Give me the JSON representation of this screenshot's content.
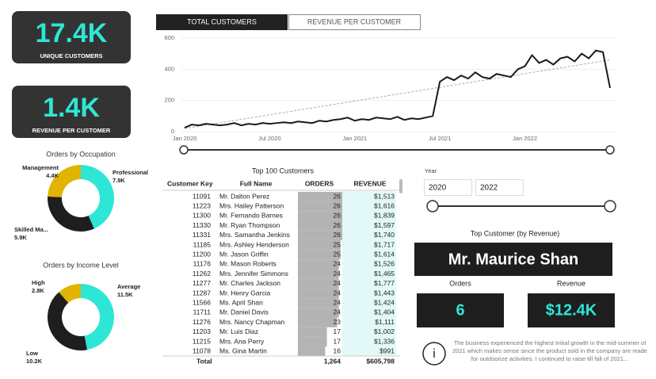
{
  "kpis": [
    {
      "value": "17.4K",
      "label": "UNIQUE CUSTOMERS"
    },
    {
      "value": "1.4K",
      "label": "REVENUE PER CUSTOMER"
    }
  ],
  "tabs": [
    "TOTAL CUSTOMERS",
    "REVENUE PER CUSTOMER"
  ],
  "chart_data": [
    {
      "type": "line",
      "color": "#1a1a1a",
      "categories": [
        "Jan 2020",
        null,
        null,
        null,
        null,
        null,
        null,
        null,
        null,
        null,
        null,
        null,
        "Jul 2020",
        null,
        null,
        null,
        null,
        null,
        null,
        null,
        null,
        null,
        null,
        null,
        "Jan 2021",
        null,
        null,
        null,
        null,
        null,
        null,
        null,
        null,
        null,
        null,
        null,
        "Jul 2021",
        null,
        null,
        null,
        null,
        null,
        null,
        null,
        null,
        null,
        null,
        null,
        "Jan 2022",
        null,
        null,
        null,
        null,
        null,
        null,
        null,
        null,
        null,
        null,
        null,
        null
      ],
      "values": [
        25,
        45,
        40,
        50,
        45,
        40,
        45,
        55,
        40,
        50,
        45,
        55,
        50,
        55,
        60,
        55,
        65,
        60,
        55,
        70,
        65,
        75,
        80,
        90,
        70,
        80,
        75,
        90,
        85,
        80,
        95,
        75,
        85,
        80,
        90,
        100,
        320,
        350,
        330,
        360,
        340,
        380,
        350,
        340,
        370,
        360,
        350,
        400,
        420,
        490,
        440,
        460,
        430,
        470,
        480,
        450,
        500,
        470,
        520,
        510,
        280
      ],
      "trendline": {
        "start": 20,
        "end": 460,
        "color": "#aaaaaa"
      },
      "ylim": [
        0,
        600
      ],
      "yticks": [
        0,
        200,
        400,
        600
      ],
      "grid": true
    },
    {
      "type": "donut",
      "title": "Orders by Occupation",
      "categories": [
        "Professional",
        "Skilled Ma...",
        "Management"
      ],
      "values": [
        7900,
        5900,
        4400
      ],
      "value_labels": [
        "7.9K",
        "5.9K",
        "4.4K"
      ],
      "colors": [
        "#2ee6d6",
        "#1e1e1e",
        "#e0b400"
      ]
    },
    {
      "type": "donut",
      "title": "Orders by Income Level",
      "categories": [
        "Average",
        "Low",
        "High"
      ],
      "values": [
        11500,
        10200,
        2800
      ],
      "value_labels": [
        "11.5K",
        "10.2K",
        "2.8K"
      ],
      "colors": [
        "#2ee6d6",
        "#1e1e1e",
        "#e0b400"
      ]
    }
  ],
  "table": {
    "title": "Top 100 Customers",
    "columns": [
      "Customer Key",
      "Full Name",
      "ORDERS",
      "REVENUE"
    ],
    "rows": [
      [
        11091,
        "Mr. Dalton Perez",
        26,
        "$1,513"
      ],
      [
        11223,
        "Mrs. Hailey Patterson",
        26,
        "$1,616"
      ],
      [
        11300,
        "Mr. Fernando Barnes",
        26,
        "$1,839"
      ],
      [
        11330,
        "Mr. Ryan Thompson",
        26,
        "$1,597"
      ],
      [
        11331,
        "Mrs. Samantha Jenkins",
        26,
        "$1,740"
      ],
      [
        11185,
        "Mrs. Ashley Henderson",
        25,
        "$1,717"
      ],
      [
        11200,
        "Mr. Jason Griffin",
        25,
        "$1,614"
      ],
      [
        11176,
        "Mr. Mason Roberts",
        24,
        "$1,526"
      ],
      [
        11262,
        "Mrs. Jennifer Simmons",
        24,
        "$1,465"
      ],
      [
        11277,
        "Mr. Charles Jackson",
        24,
        "$1,777"
      ],
      [
        11287,
        "Mr. Henry Garcia",
        24,
        "$1,443"
      ],
      [
        11566,
        "Ms. April Shan",
        24,
        "$1,424"
      ],
      [
        11711,
        "Mr. Daniel Davis",
        24,
        "$1,404"
      ],
      [
        11276,
        "Mrs. Nancy Chapman",
        23,
        "$1,111"
      ],
      [
        11203,
        "Mr. Luis Diaz",
        17,
        "$1,002"
      ],
      [
        11215,
        "Mrs. Ana Perry",
        17,
        "$1,336"
      ],
      [
        11078,
        "Ms. Gina Martin",
        16,
        "$991"
      ]
    ],
    "total": [
      "Total",
      "1,264",
      "$605,798"
    ]
  },
  "slicer": {
    "label": "Year",
    "from": "2020",
    "to": "2022"
  },
  "top_customer": {
    "title": "Top Customer (by Revenue)",
    "name": "Mr. Maurice Shan",
    "orders_label": "Orders",
    "orders": "6",
    "revenue_label": "Revenue",
    "revenue": "$12.4K"
  },
  "note": "The business experienced the highest initial growth in the mid-summer of 2021 which makes sense since the product sold in the company are made for outdoorize activities. I continued to raise till fall of 2021..."
}
